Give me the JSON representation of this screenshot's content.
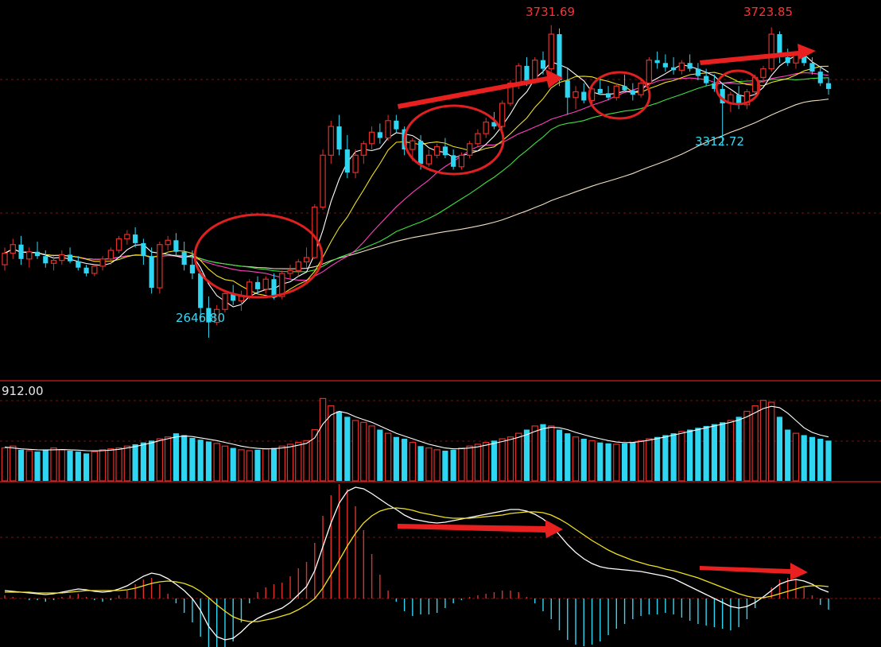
{
  "chart_data": [
    {
      "type": "candlestick",
      "panel": "price",
      "ylim": [
        2550,
        3780
      ],
      "colors": {
        "up": "#e0302a",
        "down": "#2fd6f2",
        "ma5": "#ffffff",
        "ma10": "#f0e020",
        "ma20": "#ff40c0",
        "ma30": "#40e040",
        "ma60": "#f0e0c0"
      },
      "annotations": {
        "high_left": {
          "label": "3731.69",
          "value": 3731.69
        },
        "high_right": {
          "label": "3723.85",
          "value": 3723.85
        },
        "low_left": {
          "label": "2646.80",
          "value": 2646.8
        },
        "low_mid": {
          "label": "3312.72",
          "value": 3312.72
        }
      },
      "candles": [
        [
          2900,
          2960,
          2880,
          2940
        ],
        [
          2940,
          2990,
          2920,
          2970
        ],
        [
          2970,
          3000,
          2900,
          2920
        ],
        [
          2920,
          2960,
          2890,
          2945
        ],
        [
          2945,
          2980,
          2920,
          2930
        ],
        [
          2930,
          2950,
          2890,
          2905
        ],
        [
          2905,
          2930,
          2880,
          2915
        ],
        [
          2915,
          2950,
          2900,
          2935
        ],
        [
          2935,
          2960,
          2905,
          2912
        ],
        [
          2912,
          2930,
          2880,
          2890
        ],
        [
          2890,
          2900,
          2860,
          2870
        ],
        [
          2870,
          2900,
          2860,
          2895
        ],
        [
          2895,
          2930,
          2880,
          2920
        ],
        [
          2920,
          2960,
          2900,
          2950
        ],
        [
          2950,
          3000,
          2940,
          2990
        ],
        [
          2990,
          3020,
          2970,
          3005
        ],
        [
          3005,
          3030,
          2960,
          2975
        ],
        [
          2975,
          2990,
          2900,
          2930
        ],
        [
          2930,
          2960,
          2800,
          2820
        ],
        [
          2820,
          2980,
          2800,
          2970
        ],
        [
          2970,
          3000,
          2950,
          2985
        ],
        [
          2985,
          3010,
          2930,
          2945
        ],
        [
          2945,
          2980,
          2880,
          2900
        ],
        [
          2900,
          2950,
          2850,
          2870
        ],
        [
          2870,
          2880,
          2700,
          2750
        ],
        [
          2750,
          2790,
          2646.8,
          2700
        ],
        [
          2700,
          2760,
          2690,
          2745
        ],
        [
          2745,
          2810,
          2735,
          2800
        ],
        [
          2800,
          2830,
          2760,
          2775
        ],
        [
          2775,
          2810,
          2740,
          2790
        ],
        [
          2790,
          2850,
          2780,
          2840
        ],
        [
          2840,
          2860,
          2800,
          2815
        ],
        [
          2815,
          2860,
          2800,
          2850
        ],
        [
          2850,
          2870,
          2780,
          2790
        ],
        [
          2790,
          2880,
          2780,
          2870
        ],
        [
          2870,
          2900,
          2850,
          2880
        ],
        [
          2880,
          2920,
          2860,
          2910
        ],
        [
          2910,
          2960,
          2890,
          2925
        ],
        [
          2925,
          3110,
          2920,
          3100
        ],
        [
          3100,
          3300,
          3090,
          3280
        ],
        [
          3280,
          3400,
          3250,
          3380
        ],
        [
          3380,
          3420,
          3280,
          3300
        ],
        [
          3300,
          3350,
          3200,
          3220
        ],
        [
          3220,
          3300,
          3200,
          3280
        ],
        [
          3280,
          3330,
          3250,
          3320
        ],
        [
          3320,
          3380,
          3300,
          3360
        ],
        [
          3360,
          3390,
          3320,
          3340
        ],
        [
          3340,
          3420,
          3330,
          3400
        ],
        [
          3400,
          3420,
          3360,
          3370
        ],
        [
          3370,
          3380,
          3280,
          3300
        ],
        [
          3300,
          3340,
          3260,
          3330
        ],
        [
          3330,
          3350,
          3230,
          3250
        ],
        [
          3250,
          3300,
          3240,
          3280
        ],
        [
          3280,
          3320,
          3270,
          3310
        ],
        [
          3310,
          3340,
          3270,
          3280
        ],
        [
          3280,
          3300,
          3230,
          3240
        ],
        [
          3240,
          3290,
          3230,
          3280
        ],
        [
          3280,
          3330,
          3270,
          3320
        ],
        [
          3320,
          3370,
          3310,
          3355
        ],
        [
          3355,
          3410,
          3340,
          3395
        ],
        [
          3395,
          3430,
          3370,
          3380
        ],
        [
          3380,
          3470,
          3370,
          3460
        ],
        [
          3460,
          3540,
          3450,
          3530
        ],
        [
          3530,
          3600,
          3510,
          3590
        ],
        [
          3590,
          3620,
          3520,
          3540
        ],
        [
          3540,
          3620,
          3530,
          3610
        ],
        [
          3610,
          3640,
          3560,
          3580
        ],
        [
          3580,
          3731.69,
          3570,
          3700
        ],
        [
          3700,
          3720,
          3520,
          3540
        ],
        [
          3540,
          3580,
          3420,
          3480
        ],
        [
          3480,
          3520,
          3440,
          3500
        ],
        [
          3500,
          3530,
          3460,
          3470
        ],
        [
          3470,
          3520,
          3450,
          3510
        ],
        [
          3510,
          3550,
          3490,
          3495
        ],
        [
          3495,
          3520,
          3470,
          3480
        ],
        [
          3480,
          3530,
          3470,
          3520
        ],
        [
          3520,
          3560,
          3500,
          3505
        ],
        [
          3505,
          3530,
          3470,
          3490
        ],
        [
          3490,
          3540,
          3480,
          3530
        ],
        [
          3530,
          3620,
          3520,
          3610
        ],
        [
          3610,
          3640,
          3580,
          3600
        ],
        [
          3600,
          3630,
          3570,
          3585
        ],
        [
          3585,
          3620,
          3560,
          3575
        ],
        [
          3575,
          3610,
          3560,
          3600
        ],
        [
          3600,
          3630,
          3570,
          3580
        ],
        [
          3580,
          3600,
          3540,
          3555
        ],
        [
          3555,
          3580,
          3520,
          3530
        ],
        [
          3530,
          3560,
          3500,
          3510
        ],
        [
          3510,
          3530,
          3312.72,
          3460
        ],
        [
          3460,
          3500,
          3430,
          3490
        ],
        [
          3490,
          3520,
          3440,
          3455
        ],
        [
          3455,
          3510,
          3440,
          3500
        ],
        [
          3500,
          3560,
          3490,
          3550
        ],
        [
          3550,
          3590,
          3530,
          3580
        ],
        [
          3580,
          3723.85,
          3570,
          3700
        ],
        [
          3700,
          3710,
          3600,
          3620
        ],
        [
          3620,
          3650,
          3590,
          3600
        ],
        [
          3600,
          3640,
          3580,
          3630
        ],
        [
          3630,
          3650,
          3590,
          3600
        ],
        [
          3600,
          3620,
          3560,
          3570
        ],
        [
          3570,
          3590,
          3520,
          3530
        ],
        [
          3530,
          3550,
          3490,
          3510
        ]
      ]
    },
    {
      "type": "bar",
      "panel": "volume",
      "max_label": "912.00",
      "max_value": 912,
      "ylim": [
        0,
        912
      ],
      "values": [
        360,
        380,
        340,
        330,
        320,
        340,
        360,
        340,
        330,
        320,
        300,
        320,
        340,
        350,
        360,
        380,
        400,
        420,
        440,
        460,
        480,
        520,
        500,
        470,
        450,
        430,
        410,
        380,
        360,
        340,
        330,
        340,
        350,
        360,
        380,
        400,
        420,
        440,
        560,
        900,
        820,
        760,
        700,
        660,
        640,
        600,
        560,
        520,
        480,
        460,
        420,
        380,
        360,
        340,
        330,
        340,
        360,
        380,
        400,
        420,
        440,
        460,
        480,
        520,
        560,
        600,
        620,
        600,
        560,
        520,
        480,
        460,
        440,
        420,
        410,
        400,
        410,
        420,
        440,
        460,
        480,
        500,
        520,
        540,
        560,
        580,
        600,
        620,
        640,
        660,
        700,
        760,
        820,
        880,
        860,
        700,
        560,
        520,
        500,
        480,
        460,
        440
      ],
      "ma": [
        370,
        360,
        350,
        345,
        340,
        338,
        340,
        342,
        340,
        336,
        330,
        328,
        330,
        336,
        345,
        360,
        375,
        395,
        415,
        440,
        460,
        480,
        490,
        485,
        470,
        455,
        440,
        420,
        400,
        380,
        365,
        355,
        350,
        352,
        360,
        372,
        390,
        410,
        470,
        620,
        720,
        760,
        740,
        700,
        670,
        640,
        600,
        560,
        520,
        490,
        460,
        430,
        400,
        380,
        360,
        350,
        352,
        360,
        372,
        390,
        410,
        430,
        452,
        476,
        505,
        540,
        570,
        585,
        580,
        560,
        530,
        505,
        480,
        460,
        440,
        425,
        418,
        420,
        430,
        445,
        462,
        480,
        500,
        520,
        540,
        560,
        580,
        600,
        620,
        640,
        665,
        700,
        745,
        790,
        815,
        800,
        740,
        660,
        580,
        530,
        500,
        480
      ]
    },
    {
      "type": "line",
      "panel": "macd",
      "ylim": [
        -100,
        150
      ],
      "series": [
        {
          "values": [
            10,
            9,
            8,
            7,
            6,
            5,
            6,
            8,
            10,
            12,
            11,
            9,
            8,
            9,
            12,
            16,
            22,
            28,
            32,
            30,
            25,
            18,
            10,
            0,
            -15,
            -35,
            -48,
            -52,
            -50,
            -42,
            -32,
            -25,
            -20,
            -16,
            -12,
            -5,
            5,
            15,
            35,
            65,
            95,
            120,
            135,
            140,
            138,
            132,
            125,
            118,
            112,
            105,
            100,
            98,
            96,
            95,
            96,
            98,
            100,
            102,
            104,
            106,
            108,
            110,
            112,
            112,
            110,
            106,
            100,
            92,
            80,
            68,
            58,
            50,
            44,
            40,
            38,
            37,
            36,
            35,
            34,
            32,
            30,
            28,
            25,
            20,
            15,
            10,
            5,
            0,
            -5,
            -10,
            -12,
            -10,
            -5,
            2,
            10,
            18,
            22,
            24,
            22,
            18,
            12,
            8
          ]
        },
        {
          "values": [
            8,
            8,
            8,
            8,
            7,
            7,
            7,
            7,
            8,
            9,
            10,
            10,
            10,
            10,
            10,
            11,
            13,
            16,
            19,
            21,
            22,
            21,
            19,
            15,
            9,
            1,
            -8,
            -16,
            -23,
            -27,
            -29,
            -29,
            -27,
            -25,
            -22,
            -19,
            -14,
            -8,
            0,
            13,
            30,
            48,
            66,
            82,
            95,
            104,
            110,
            113,
            114,
            113,
            111,
            108,
            106,
            104,
            102,
            101,
            101,
            101,
            102,
            103,
            104,
            105,
            107,
            108,
            109,
            109,
            108,
            105,
            100,
            94,
            87,
            80,
            73,
            67,
            61,
            56,
            52,
            48,
            45,
            42,
            40,
            37,
            35,
            32,
            29,
            26,
            22,
            18,
            14,
            10,
            6,
            3,
            1,
            1,
            3,
            6,
            9,
            12,
            15,
            16,
            16,
            15
          ]
        }
      ],
      "histogram": [
        4,
        2,
        0,
        -2,
        -2,
        -4,
        -2,
        2,
        4,
        6,
        2,
        -2,
        -4,
        -2,
        4,
        10,
        18,
        24,
        26,
        18,
        6,
        -6,
        -18,
        -30,
        -48,
        -72,
        -80,
        -72,
        -54,
        -30,
        -6,
        8,
        14,
        18,
        20,
        28,
        38,
        46,
        70,
        104,
        130,
        144,
        138,
        116,
        86,
        56,
        30,
        10,
        -4,
        -16,
        -22,
        -20,
        -20,
        -18,
        -12,
        -6,
        -2,
        2,
        4,
        6,
        8,
        10,
        10,
        8,
        2,
        -6,
        -16,
        -26,
        -40,
        -52,
        -58,
        -60,
        -58,
        -54,
        -46,
        -38,
        -32,
        -26,
        -22,
        -20,
        -20,
        -18,
        -20,
        -24,
        -28,
        -32,
        -34,
        -36,
        -38,
        -40,
        -36,
        -26,
        -12,
        2,
        14,
        24,
        26,
        24,
        14,
        4,
        -8,
        -14
      ]
    }
  ]
}
